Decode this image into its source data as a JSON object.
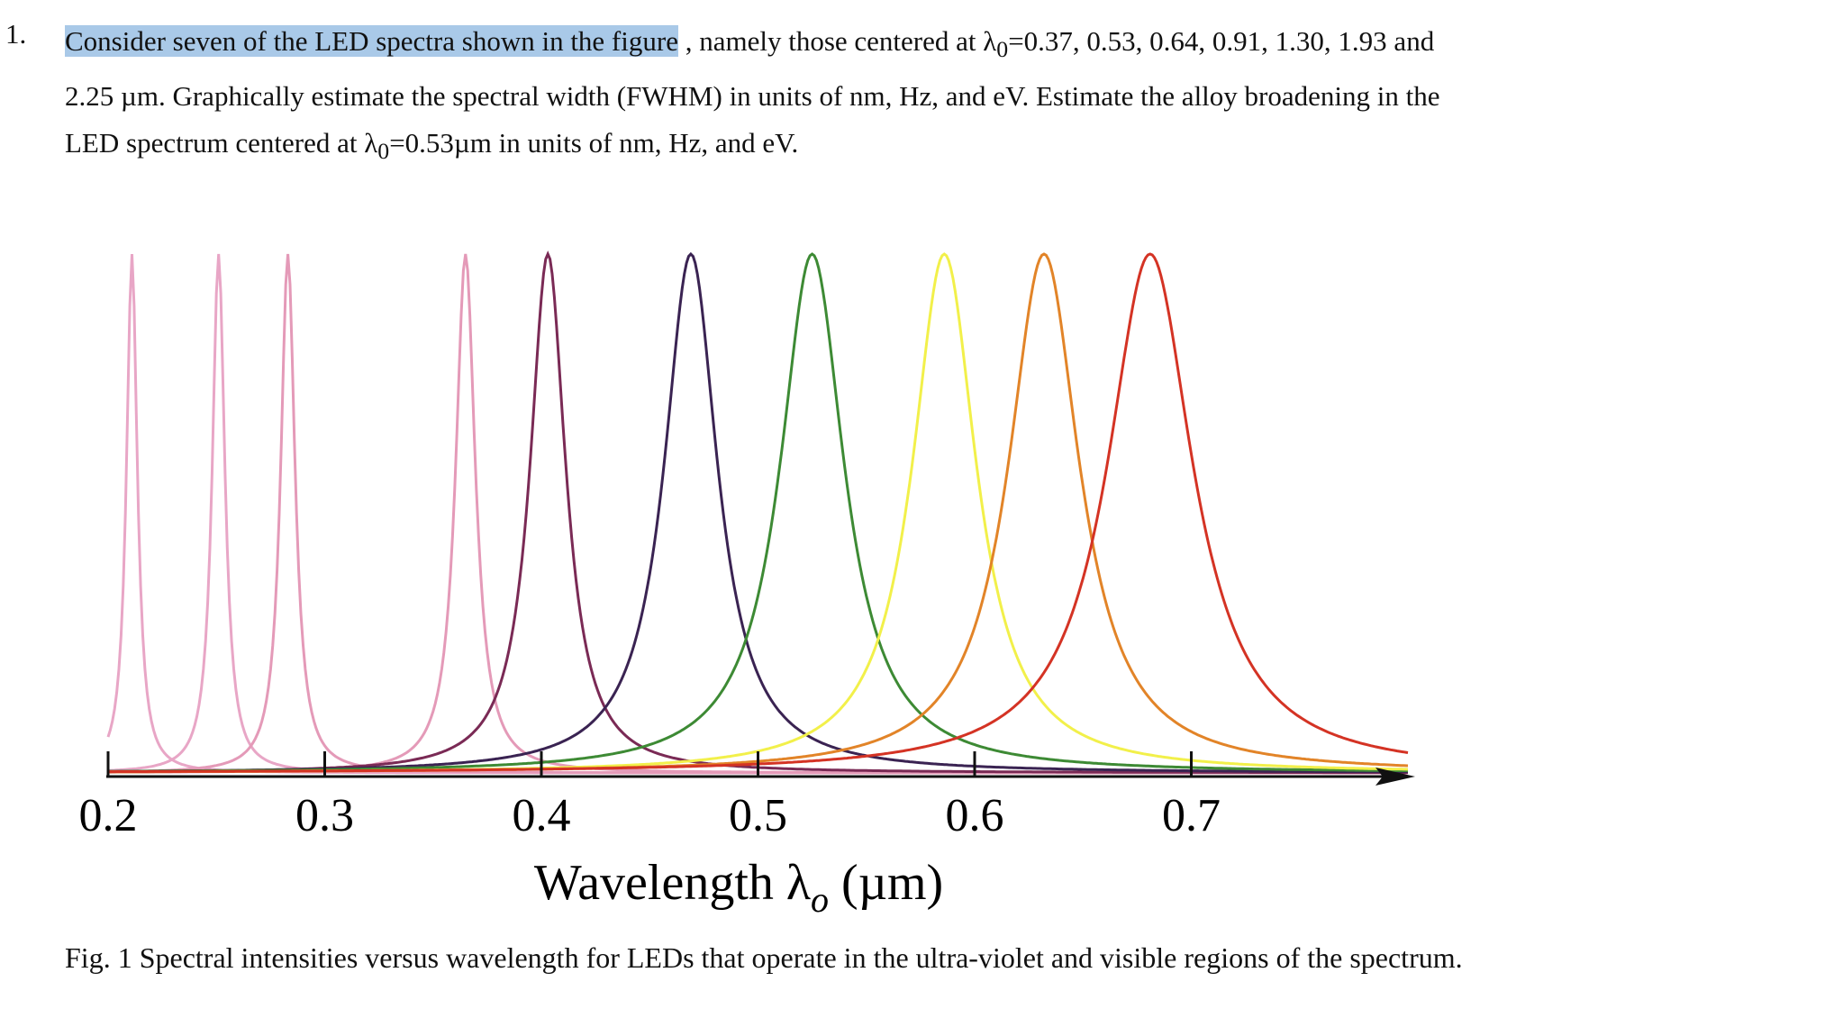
{
  "question": {
    "number": "1.",
    "highlight": "Consider seven of the LED spectra shown in the figure",
    "text_1": " , namely those centered at λ",
    "sub_1": "0",
    "text_2": "=0.37, 0.53, 0.64, 0.91, 1.30, 1.93 and 2.25 µm. Graphically estimate the spectral width (FWHM) in units of nm, Hz, and eV.   Estimate the alloy broadening in the LED spectrum centered at λ",
    "sub_2": "0",
    "text_3": "=0.53µm in units of nm, Hz, and eV."
  },
  "chart_data": {
    "type": "spectra",
    "xlabel": "Wavelength λ",
    "xlabel_sub": "o",
    "xlabel_unit": " (µm)",
    "xlim": [
      0.2,
      0.8
    ],
    "xticks": [
      0.2,
      0.3,
      0.4,
      0.5,
      0.6,
      0.7
    ],
    "series": [
      {
        "color": "#e8a6c6",
        "center": 0.211,
        "width": 0.006
      },
      {
        "color": "#e8a6c6",
        "center": 0.251,
        "width": 0.007
      },
      {
        "color": "#e49ab8",
        "center": 0.283,
        "width": 0.008
      },
      {
        "color": "#e49ab8",
        "center": 0.365,
        "width": 0.011
      },
      {
        "color": "#7a2a55",
        "center": 0.403,
        "width": 0.02
      },
      {
        "color": "#3a2352",
        "center": 0.469,
        "width": 0.03
      },
      {
        "color": "#3d8a34",
        "center": 0.525,
        "width": 0.036
      },
      {
        "color": "#f2f04a",
        "center": 0.586,
        "width": 0.036
      },
      {
        "color": "#e28428",
        "center": 0.632,
        "width": 0.04
      },
      {
        "color": "#d43324",
        "center": 0.681,
        "width": 0.048
      }
    ]
  },
  "caption": "Fig. 1 Spectral intensities versus wavelength for LEDs that operate in the ultra-violet and visible regions of the spectrum."
}
